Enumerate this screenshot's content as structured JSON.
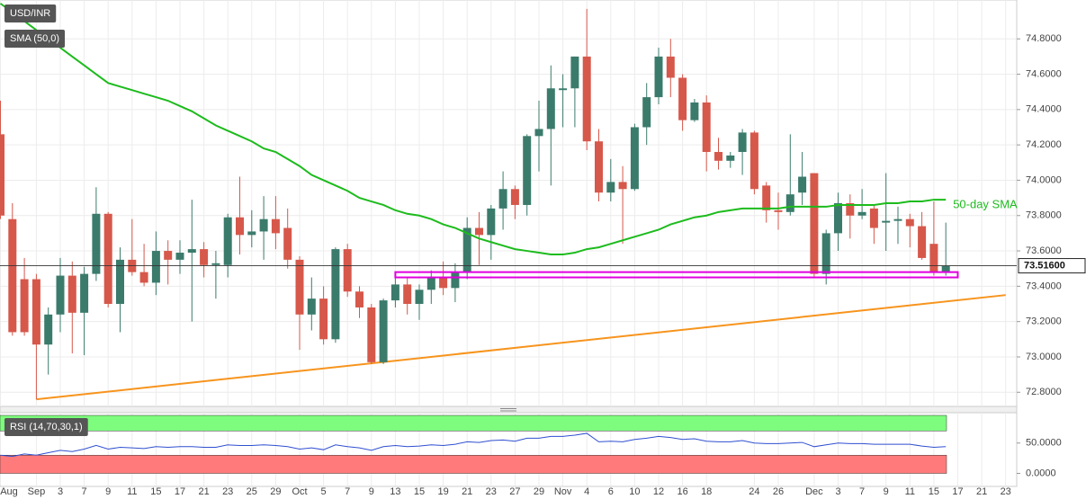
{
  "chart_data": [
    {
      "type": "candlestick",
      "grid": true,
      "categories": [
        "Aug",
        null,
        null,
        "Sep",
        null,
        "3",
        null,
        "7",
        null,
        "9",
        null,
        "11",
        null,
        "15",
        null,
        "17",
        null,
        "21",
        null,
        "23",
        null,
        "25",
        null,
        "29",
        null,
        "Oct",
        null,
        "5",
        null,
        "7",
        null,
        "9",
        null,
        "13",
        null,
        "15",
        null,
        "19",
        null,
        "21",
        null,
        "23",
        null,
        "27",
        null,
        "29",
        null,
        "Nov",
        null,
        "4",
        null,
        "6",
        null,
        "10",
        null,
        "12",
        null,
        "16",
        null,
        "18",
        null,
        null,
        null,
        "24",
        null,
        "26",
        null,
        null,
        "Dec",
        null,
        "3",
        null,
        "7",
        null,
        "9",
        null,
        "11",
        null,
        "15",
        null,
        "17",
        null,
        "21",
        null,
        "23"
      ],
      "ylim": [
        72.72,
        75.02
      ],
      "yticks": [
        {
          "value": 72.8,
          "label": "72.8000"
        },
        {
          "value": 73.0,
          "label": "73.0000"
        },
        {
          "value": 73.2,
          "label": "73.2000"
        },
        {
          "value": 73.4,
          "label": "73.4000"
        },
        {
          "value": 73.6,
          "label": "73.6000"
        },
        {
          "value": 73.8,
          "label": "73.8000"
        },
        {
          "value": 74.0,
          "label": "74.0000"
        },
        {
          "value": 74.2,
          "label": "74.2000"
        },
        {
          "value": 74.4,
          "label": "74.4000"
        },
        {
          "value": 74.6,
          "label": "74.6000"
        },
        {
          "value": 74.8,
          "label": "74.8000"
        }
      ],
      "series": [
        {
          "name": "USD/INR",
          "up_color": "#3b7b6c",
          "down_color": "#d6584b",
          "open": [
            74.26,
            73.78,
            73.44,
            73.44,
            73.07,
            73.24,
            73.46,
            73.25,
            73.47,
            73.81,
            73.3,
            73.55,
            73.48,
            73.42,
            73.6,
            73.55,
            73.59,
            73.61,
            73.52,
            73.52,
            73.79,
            73.69,
            73.71,
            73.78,
            73.73,
            73.55,
            73.24,
            73.33,
            73.1,
            73.61,
            73.37,
            73.28,
            72.97,
            73.32,
            73.41,
            73.3,
            73.38,
            73.45,
            73.39,
            73.48,
            73.73,
            73.69,
            73.84,
            73.95,
            73.86,
            74.25,
            74.29,
            74.51,
            74.52,
            74.7,
            74.22,
            73.93,
            73.99,
            73.95,
            74.3,
            74.47,
            74.7,
            74.58,
            74.34,
            74.44,
            74.16,
            74.11,
            74.16,
            74.27,
            73.97,
            73.83,
            73.82,
            73.93,
            74.04,
            73.47,
            73.7,
            73.87,
            73.8,
            73.84,
            73.76,
            73.77,
            73.78,
            73.74,
            73.64,
            73.48,
            null,
            null,
            null,
            null,
            null
          ],
          "high": [
            74.45,
            73.87,
            73.56,
            73.47,
            73.28,
            73.56,
            73.54,
            73.51,
            73.96,
            73.82,
            73.62,
            73.78,
            73.64,
            73.71,
            73.66,
            73.66,
            73.89,
            73.65,
            73.6,
            73.81,
            74.02,
            73.83,
            73.91,
            73.91,
            73.84,
            73.57,
            73.45,
            73.4,
            73.62,
            73.64,
            73.4,
            73.3,
            73.33,
            73.46,
            73.45,
            73.41,
            73.49,
            73.54,
            73.53,
            73.79,
            73.82,
            73.86,
            74.05,
            73.97,
            74.26,
            74.45,
            74.65,
            74.6,
            74.7,
            74.97,
            74.29,
            74.12,
            74.08,
            74.32,
            74.55,
            74.75,
            74.8,
            74.6,
            74.46,
            74.48,
            74.24,
            74.16,
            74.29,
            74.28,
            73.99,
            73.93,
            74.26,
            74.16,
            74.04,
            73.72,
            73.93,
            73.92,
            73.95,
            73.86,
            74.04,
            73.85,
            73.81,
            73.82,
            73.88,
            73.76,
            null,
            null,
            null,
            null,
            null
          ],
          "low": [
            73.78,
            73.12,
            73.12,
            72.76,
            72.9,
            73.14,
            73.02,
            73.01,
            73.43,
            73.28,
            73.14,
            73.46,
            73.4,
            73.35,
            73.41,
            73.47,
            73.2,
            73.45,
            73.33,
            73.45,
            73.58,
            73.62,
            73.55,
            73.61,
            73.5,
            73.04,
            73.15,
            73.07,
            73.08,
            73.34,
            73.22,
            72.96,
            72.96,
            73.28,
            73.24,
            73.21,
            73.3,
            73.35,
            73.31,
            73.44,
            73.52,
            73.55,
            73.72,
            73.78,
            73.8,
            74.05,
            73.97,
            74.3,
            74.3,
            74.17,
            73.88,
            73.88,
            73.64,
            73.94,
            74.2,
            74.43,
            74.47,
            74.28,
            74.33,
            74.05,
            74.06,
            74.07,
            74.03,
            73.92,
            73.76,
            73.72,
            73.8,
            73.86,
            73.45,
            73.41,
            73.6,
            73.67,
            73.78,
            73.64,
            73.6,
            73.64,
            73.62,
            73.55,
            73.46,
            73.46,
            null,
            null,
            null,
            null,
            null
          ],
          "close": [
            73.8,
            73.14,
            73.14,
            73.07,
            73.24,
            73.46,
            73.25,
            73.47,
            73.81,
            73.3,
            73.55,
            73.48,
            73.42,
            73.6,
            73.55,
            73.59,
            73.61,
            73.52,
            73.53,
            73.79,
            73.69,
            73.71,
            73.78,
            73.7,
            73.55,
            73.24,
            73.33,
            73.1,
            73.61,
            73.37,
            73.28,
            72.97,
            73.32,
            73.41,
            73.3,
            73.38,
            73.45,
            73.39,
            73.48,
            73.73,
            73.69,
            73.84,
            73.95,
            73.86,
            74.25,
            74.29,
            74.52,
            74.52,
            74.7,
            74.22,
            73.93,
            73.99,
            73.95,
            74.3,
            74.47,
            74.7,
            74.58,
            74.34,
            74.44,
            74.16,
            74.11,
            74.14,
            74.27,
            73.95,
            73.83,
            73.82,
            73.92,
            74.02,
            73.47,
            73.7,
            73.87,
            73.8,
            73.82,
            73.73,
            73.77,
            73.78,
            73.74,
            73.56,
            73.48,
            73.516,
            null,
            null,
            null,
            null,
            null
          ]
        },
        {
          "name": "SMA (50,0)",
          "color": "#1dbb1d",
          "values": [
            75.0,
            74.95,
            74.9,
            74.85,
            74.8,
            74.75,
            74.7,
            74.65,
            74.6,
            74.55,
            74.53,
            74.51,
            74.49,
            74.47,
            74.45,
            74.42,
            74.39,
            74.35,
            74.31,
            74.28,
            74.25,
            74.22,
            74.18,
            74.16,
            74.12,
            74.08,
            74.03,
            74.0,
            73.97,
            73.94,
            73.9,
            73.88,
            73.86,
            73.83,
            73.81,
            73.8,
            73.78,
            73.75,
            73.73,
            73.7,
            73.67,
            73.65,
            73.63,
            73.61,
            73.6,
            73.59,
            73.58,
            73.58,
            73.59,
            73.61,
            73.62,
            73.64,
            73.66,
            73.68,
            73.7,
            73.72,
            73.75,
            73.77,
            73.79,
            73.8,
            73.82,
            73.83,
            73.84,
            73.84,
            73.84,
            73.84,
            73.85,
            73.85,
            73.85,
            73.85,
            73.86,
            73.86,
            73.86,
            73.86,
            73.87,
            73.87,
            73.88,
            73.88,
            73.89,
            73.89,
            null,
            null,
            null,
            null,
            null
          ]
        }
      ],
      "annotation": "50-day SMA",
      "last_price": {
        "value": 73.516,
        "label": "73.51600"
      },
      "trend_line": {
        "x": [
          3,
          84
        ],
        "values": [
          72.76,
          73.35
        ],
        "color": "#f7941d"
      },
      "zone": {
        "x": [
          33,
          80
        ],
        "ylim": [
          73.45,
          73.48
        ],
        "color": "#e000e0"
      }
    },
    {
      "type": "line",
      "ylim": [
        -20,
        100
      ],
      "yticks": [
        {
          "value": 50,
          "label": "50.0000"
        },
        {
          "value": 0,
          "label": "0.0000"
        }
      ],
      "overbought": 70,
      "oversold": 30,
      "overbought_color": "#7dfc7d",
      "oversold_color": "#ff7b7b",
      "series": [
        {
          "name": "RSI (14,70,30,1)",
          "color": "#2f4fd0",
          "values": [
            30,
            28,
            32,
            30,
            34,
            38,
            36,
            40,
            46,
            40,
            43,
            42,
            41,
            44,
            43,
            44,
            44,
            43,
            43,
            47,
            46,
            46,
            47,
            46,
            44,
            40,
            42,
            39,
            47,
            44,
            42,
            38,
            44,
            46,
            44,
            45,
            47,
            46,
            48,
            52,
            51,
            54,
            55,
            53,
            58,
            58,
            61,
            61,
            63,
            66,
            52,
            53,
            52,
            56,
            58,
            61,
            59,
            56,
            57,
            53,
            52,
            52,
            54,
            50,
            49,
            49,
            50,
            51,
            44,
            47,
            50,
            49,
            49,
            48,
            48,
            48,
            48,
            45,
            43,
            44,
            null,
            null,
            null,
            null,
            null
          ]
        }
      ]
    }
  ]
}
